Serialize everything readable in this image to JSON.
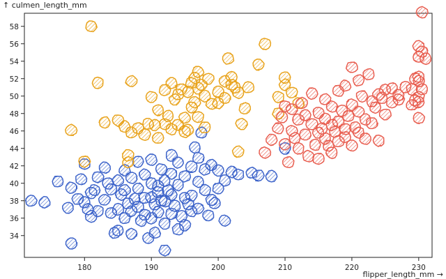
{
  "chart_data": {
    "type": "scatter",
    "xlabel": "flipper_length_mm →",
    "ylabel": "↑ culmen_length_mm",
    "xlim": [
      171,
      232
    ],
    "ylim": [
      31.5,
      59.5
    ],
    "xticks": [
      180,
      190,
      200,
      210,
      220,
      230
    ],
    "yticks": [
      34,
      36,
      38,
      40,
      42,
      44,
      46,
      48,
      50,
      52,
      54,
      56,
      58
    ],
    "style": "hand-drawn hatched circles",
    "series": [
      {
        "name": "blue cluster",
        "color": "#3b62c9",
        "fill": "#8ea6e6",
        "points": [
          [
            172,
            38
          ],
          [
            174,
            37.8
          ],
          [
            176,
            40.2
          ],
          [
            177.5,
            37.2
          ],
          [
            178,
            39.5
          ],
          [
            178,
            33.1
          ],
          [
            179,
            38.2
          ],
          [
            179.5,
            40.5
          ],
          [
            180,
            42.2
          ],
          [
            180,
            37.8
          ],
          [
            180.5,
            37
          ],
          [
            181,
            36.2
          ],
          [
            181,
            38.9
          ],
          [
            181.5,
            39.2
          ],
          [
            182,
            40.7
          ],
          [
            182,
            36.8
          ],
          [
            183,
            41.8
          ],
          [
            183,
            38.1
          ],
          [
            183.5,
            40
          ],
          [
            184,
            39.3
          ],
          [
            184,
            36.6
          ],
          [
            184.5,
            34.3
          ],
          [
            185,
            37
          ],
          [
            185,
            40.3
          ],
          [
            185,
            34.6
          ],
          [
            185.5,
            38.7
          ],
          [
            186,
            36
          ],
          [
            186,
            41.5
          ],
          [
            186,
            39.2
          ],
          [
            186.5,
            37.7
          ],
          [
            187,
            36.8
          ],
          [
            187,
            34.2
          ],
          [
            187,
            40.6
          ],
          [
            187.5,
            38.2
          ],
          [
            188,
            37.3
          ],
          [
            188,
            39.4
          ],
          [
            188,
            42.5
          ],
          [
            188.5,
            35.7
          ],
          [
            189,
            38.3
          ],
          [
            189,
            36.4
          ],
          [
            189,
            41
          ],
          [
            189.5,
            33.7
          ],
          [
            190,
            38.4
          ],
          [
            190,
            36
          ],
          [
            190,
            40
          ],
          [
            190,
            42.7
          ],
          [
            190.5,
            37.6
          ],
          [
            190.5,
            34.3
          ],
          [
            191,
            39.7
          ],
          [
            191,
            36.7
          ],
          [
            191,
            39
          ],
          [
            191.5,
            41.6
          ],
          [
            191.5,
            38
          ],
          [
            192,
            35.4
          ],
          [
            192,
            37.9
          ],
          [
            192,
            40.3
          ],
          [
            192,
            32.3
          ],
          [
            192.5,
            39.2
          ],
          [
            193,
            36.5
          ],
          [
            193,
            38.7
          ],
          [
            193,
            41.1
          ],
          [
            193,
            43.2
          ],
          [
            193.5,
            37.4
          ],
          [
            194,
            34.7
          ],
          [
            194,
            39.8
          ],
          [
            194,
            42.4
          ],
          [
            194.5,
            36.2
          ],
          [
            195,
            38.3
          ],
          [
            195,
            35.2
          ],
          [
            195,
            40.8
          ],
          [
            195.5,
            37.6
          ],
          [
            196,
            41.9
          ],
          [
            196,
            38.6
          ],
          [
            196,
            36.8
          ],
          [
            196.5,
            44.1
          ],
          [
            197,
            40.2
          ],
          [
            197,
            42.9
          ],
          [
            197,
            37.1
          ],
          [
            197.5,
            45.8
          ],
          [
            198,
            39.2
          ],
          [
            198,
            41.6
          ],
          [
            198.5,
            36.3
          ],
          [
            199,
            38.1
          ],
          [
            199,
            42.1
          ],
          [
            199.5,
            37.7
          ],
          [
            200,
            41.5
          ],
          [
            200,
            39.4
          ],
          [
            201,
            40.3
          ],
          [
            201,
            35.7
          ],
          [
            202,
            41.3
          ],
          [
            203,
            41
          ],
          [
            205,
            41.2
          ],
          [
            206,
            40.9
          ],
          [
            208,
            40.8
          ],
          [
            210,
            44
          ]
        ]
      },
      {
        "name": "orange cluster",
        "color": "#e8a21a",
        "fill": "#f3cf7a",
        "points": [
          [
            178,
            46.1
          ],
          [
            180,
            42.5
          ],
          [
            181,
            58
          ],
          [
            182,
            51.5
          ],
          [
            183,
            47
          ],
          [
            185,
            47.2
          ],
          [
            186,
            46.5
          ],
          [
            186.5,
            42.4
          ],
          [
            186.5,
            43.2
          ],
          [
            187,
            45.8
          ],
          [
            187,
            51.7
          ],
          [
            188,
            46.3
          ],
          [
            189,
            45.6
          ],
          [
            189.5,
            46.8
          ],
          [
            190,
            49.9
          ],
          [
            190.5,
            46.7
          ],
          [
            191,
            48.4
          ],
          [
            191,
            45.2
          ],
          [
            192,
            50.7
          ],
          [
            192,
            46.8
          ],
          [
            192.5,
            47.7
          ],
          [
            193,
            51.5
          ],
          [
            193,
            46.2
          ],
          [
            193.5,
            49.6
          ],
          [
            194,
            50.2
          ],
          [
            194,
            46.7
          ],
          [
            194.5,
            50.8
          ],
          [
            195,
            47.5
          ],
          [
            195,
            45.9
          ],
          [
            195.5,
            50.5
          ],
          [
            195.5,
            46.1
          ],
          [
            196,
            48.7
          ],
          [
            196,
            51.5
          ],
          [
            196.5,
            52.1
          ],
          [
            196.5,
            49.3
          ],
          [
            197,
            50.9
          ],
          [
            197,
            52.8
          ],
          [
            197,
            47.6
          ],
          [
            197.5,
            51.3
          ],
          [
            198,
            50
          ],
          [
            198,
            46.4
          ],
          [
            198.5,
            52
          ],
          [
            199,
            49.1
          ],
          [
            200,
            50.5
          ],
          [
            200,
            49.2
          ],
          [
            201,
            51.7
          ],
          [
            201,
            49.8
          ],
          [
            201.5,
            54.3
          ],
          [
            202,
            52.2
          ],
          [
            202,
            51.3
          ],
          [
            202.5,
            51
          ],
          [
            203,
            50.4
          ],
          [
            203,
            43.6
          ],
          [
            203.5,
            46.8
          ],
          [
            204,
            48.6
          ],
          [
            204.5,
            51
          ],
          [
            206,
            53.6
          ],
          [
            207,
            56
          ],
          [
            209,
            49.9
          ],
          [
            209,
            48
          ],
          [
            210,
            52.1
          ],
          [
            210,
            51.3
          ],
          [
            211,
            50.4
          ],
          [
            212,
            49.2
          ]
        ]
      },
      {
        "name": "red cluster",
        "color": "#e85d4f",
        "fill": "#f4a79d",
        "points": [
          [
            207,
            43.5
          ],
          [
            208,
            45
          ],
          [
            209,
            46.3
          ],
          [
            209.5,
            47.6
          ],
          [
            210,
            44.5
          ],
          [
            210,
            48.8
          ],
          [
            210.5,
            42.4
          ],
          [
            211,
            46
          ],
          [
            211,
            48.5
          ],
          [
            211.5,
            45.2
          ],
          [
            212,
            47.3
          ],
          [
            212,
            44
          ],
          [
            212.5,
            49.2
          ],
          [
            213,
            45.6
          ],
          [
            213,
            47.8
          ],
          [
            213.5,
            43.1
          ],
          [
            214,
            46.8
          ],
          [
            214,
            50.3
          ],
          [
            214.5,
            44.4
          ],
          [
            215,
            45.8
          ],
          [
            215,
            48.1
          ],
          [
            215,
            42.8
          ],
          [
            215.5,
            46.3
          ],
          [
            216,
            47.4
          ],
          [
            216,
            45.1
          ],
          [
            216,
            49.6
          ],
          [
            216.5,
            44.3
          ],
          [
            217,
            46.7
          ],
          [
            217,
            48.8
          ],
          [
            217,
            43.5
          ],
          [
            217.5,
            45.9
          ],
          [
            218,
            47.1
          ],
          [
            218,
            50.6
          ],
          [
            218,
            44.8
          ],
          [
            218.5,
            48.3
          ],
          [
            219,
            46.2
          ],
          [
            219,
            45.3
          ],
          [
            219,
            51.2
          ],
          [
            219.5,
            47.7
          ],
          [
            220,
            44.3
          ],
          [
            220,
            49
          ],
          [
            220,
            53.3
          ],
          [
            220.5,
            46.4
          ],
          [
            221,
            48.2
          ],
          [
            221,
            45.8
          ],
          [
            221,
            51.8
          ],
          [
            221.5,
            50
          ],
          [
            222,
            47.3
          ],
          [
            222,
            45.1
          ],
          [
            222.5,
            52.5
          ],
          [
            223,
            49.4
          ],
          [
            223,
            46.9
          ],
          [
            223.5,
            48.7
          ],
          [
            224,
            50.2
          ],
          [
            224,
            44.9
          ],
          [
            224.5,
            49.8
          ],
          [
            225,
            47.9
          ],
          [
            225,
            50.7
          ],
          [
            226,
            49.3
          ],
          [
            226,
            50.9
          ],
          [
            227,
            49.6
          ],
          [
            227,
            50.1
          ],
          [
            228,
            51
          ],
          [
            229,
            49
          ],
          [
            229,
            50.8
          ],
          [
            229.5,
            52
          ],
          [
            229.5,
            49.5
          ],
          [
            230,
            49.3
          ],
          [
            230,
            51.7
          ],
          [
            230,
            49.9
          ],
          [
            230,
            52.2
          ],
          [
            230,
            54.5
          ],
          [
            230,
            55.7
          ],
          [
            230,
            47.5
          ],
          [
            230.5,
            50.8
          ],
          [
            230.5,
            55.1
          ],
          [
            230.5,
            59.6
          ],
          [
            231,
            54.3
          ]
        ]
      }
    ]
  }
}
